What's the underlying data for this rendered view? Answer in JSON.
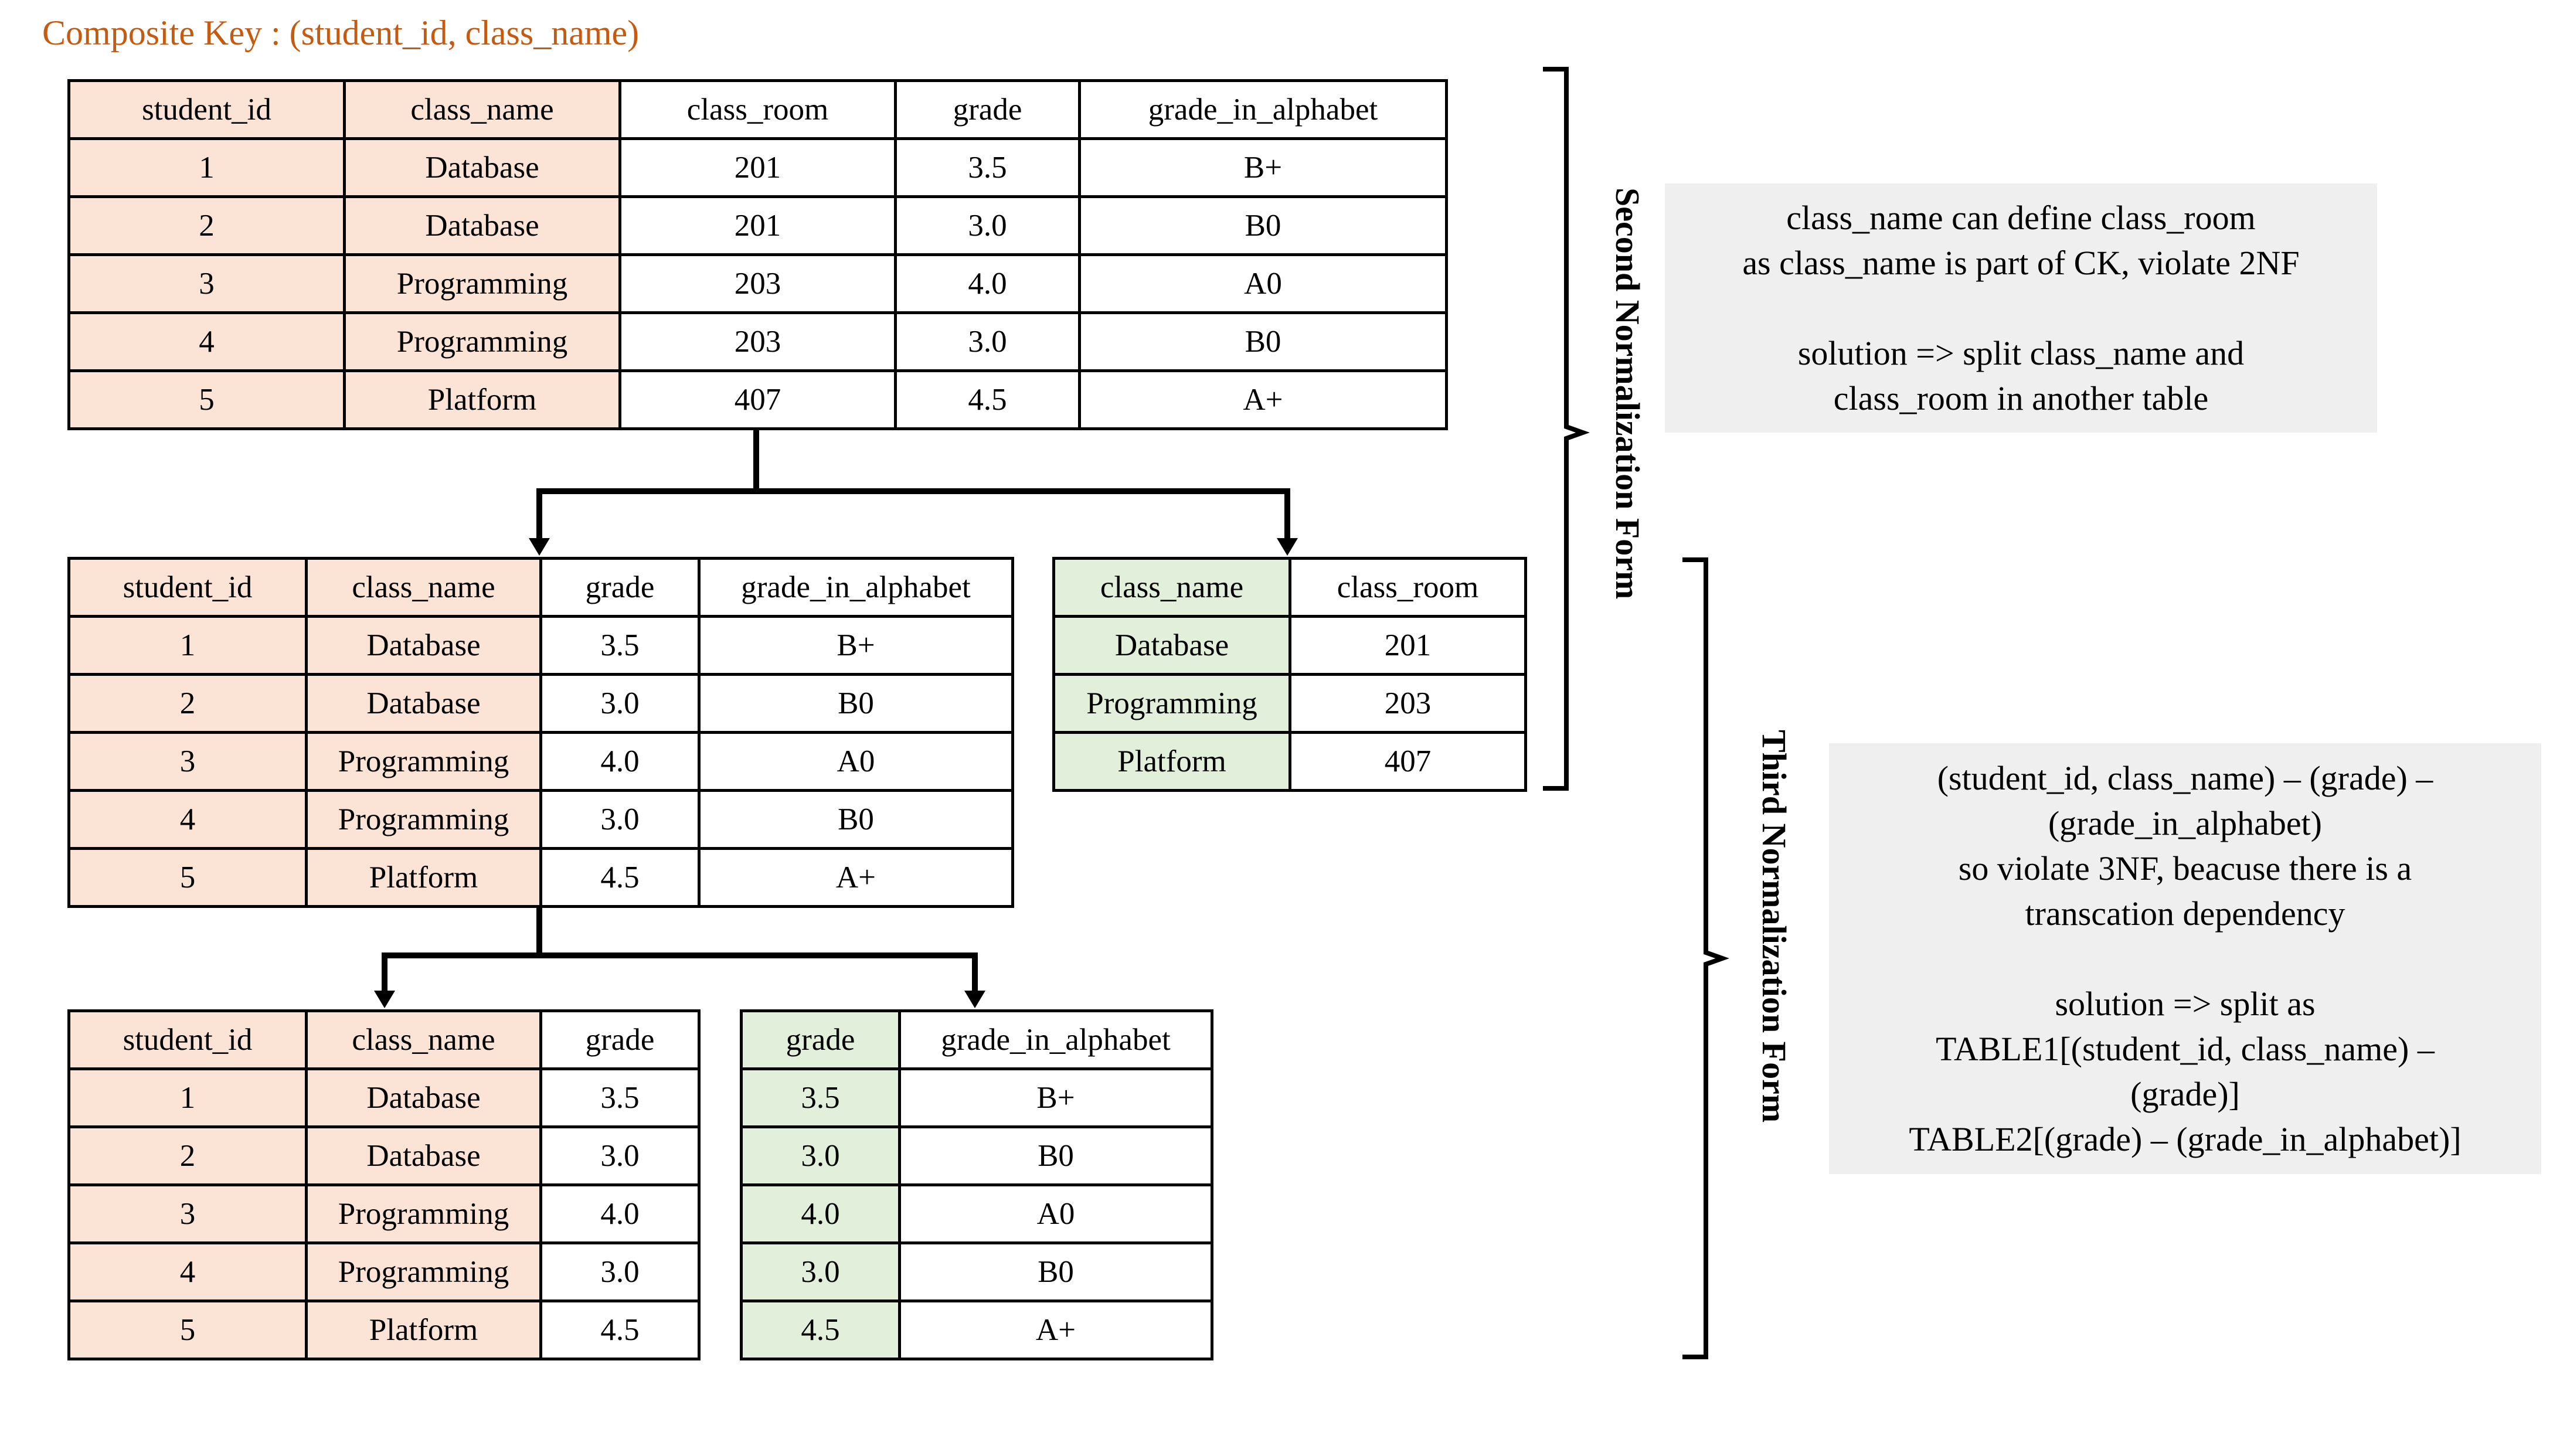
{
  "title": "Composite Key : (student_id, class_name)",
  "headers": {
    "student_id": "student_id",
    "class_name": "class_name",
    "class_room": "class_room",
    "grade": "grade",
    "grade_in_alphabet": "grade_in_alphabet"
  },
  "table_original": {
    "rows": [
      [
        "1",
        "Database",
        "201",
        "3.5",
        "B+"
      ],
      [
        "2",
        "Database",
        "201",
        "3.0",
        "B0"
      ],
      [
        "3",
        "Programming",
        "203",
        "4.0",
        "A0"
      ],
      [
        "4",
        "Programming",
        "203",
        "3.0",
        "B0"
      ],
      [
        "5",
        "Platform",
        "407",
        "4.5",
        "A+"
      ]
    ]
  },
  "table_2nf_grades": {
    "rows": [
      [
        "1",
        "Database",
        "3.5",
        "B+"
      ],
      [
        "2",
        "Database",
        "3.0",
        "B0"
      ],
      [
        "3",
        "Programming",
        "4.0",
        "A0"
      ],
      [
        "4",
        "Programming",
        "3.0",
        "B0"
      ],
      [
        "5",
        "Platform",
        "4.5",
        "A+"
      ]
    ]
  },
  "table_2nf_rooms": {
    "rows": [
      [
        "Database",
        "201"
      ],
      [
        "Programming",
        "203"
      ],
      [
        "Platform",
        "407"
      ]
    ]
  },
  "table_3nf_grades": {
    "rows": [
      [
        "1",
        "Database",
        "3.5"
      ],
      [
        "2",
        "Database",
        "3.0"
      ],
      [
        "3",
        "Programming",
        "4.0"
      ],
      [
        "4",
        "Programming",
        "3.0"
      ],
      [
        "5",
        "Platform",
        "4.5"
      ]
    ]
  },
  "table_3nf_alphabet": {
    "rows": [
      [
        "3.5",
        "B+"
      ],
      [
        "3.0",
        "B0"
      ],
      [
        "4.0",
        "A0"
      ],
      [
        "3.0",
        "B0"
      ],
      [
        "4.5",
        "A+"
      ]
    ]
  },
  "labels": {
    "second_nf": "Second Normalization Form",
    "third_nf": "Third Normalization Form"
  },
  "note_2nf": {
    "line1": "class_name can define class_room",
    "line2": "as class_name is part of CK, violate 2NF",
    "line3": "solution => split class_name and",
    "line4": "class_room in another table"
  },
  "note_3nf": {
    "line1": "(student_id, class_name) – (grade) –",
    "line2": "(grade_in_alphabet)",
    "line3": "so violate 3NF, beacuse there is a",
    "line4": "transcation dependency",
    "line5": "solution => split as",
    "line6": "TABLE1[(student_id, class_name) –",
    "line7": "(grade)]",
    "line8": "TABLE2[(grade) – (grade_in_alphabet)]"
  },
  "colors": {
    "key_fill": "#fbe3d6",
    "split_key_fill": "#e2efda",
    "title": "#c55a11",
    "note_bg": "#efefef"
  }
}
